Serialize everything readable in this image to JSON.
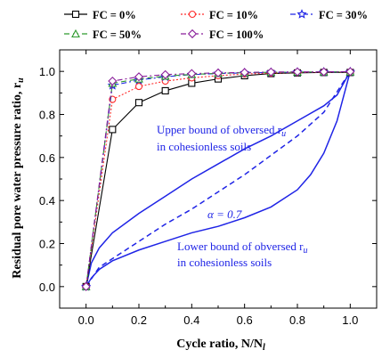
{
  "chart_data": {
    "type": "line",
    "xlabel": "Cycle ratio, N/N",
    "xlabel_sub": "l",
    "ylabel": "Residual pore water pressure ratio, r",
    "ylabel_sub": "u",
    "xlim": [
      -0.1,
      1.1
    ],
    "ylim": [
      -0.1,
      1.1
    ],
    "xticks": [
      "0.0",
      "0.2",
      "0.4",
      "0.6",
      "0.8",
      "1.0"
    ],
    "yticks": [
      "0.0",
      "0.2",
      "0.4",
      "0.6",
      "0.8",
      "1.0"
    ],
    "grid": false,
    "legend_position": "top",
    "series": [
      {
        "name": "FC = 0%",
        "color": "#000000",
        "marker": "square",
        "line": "solid",
        "x": [
          0.0,
          0.1,
          0.2,
          0.3,
          0.4,
          0.5,
          0.6,
          0.7,
          0.8,
          0.9,
          1.0
        ],
        "y": [
          0.0,
          0.73,
          0.855,
          0.91,
          0.945,
          0.965,
          0.98,
          0.99,
          0.993,
          0.995,
          0.995
        ]
      },
      {
        "name": "FC = 10%",
        "color": "#ff2a2a",
        "marker": "circle",
        "line": "dotted",
        "x": [
          0.0,
          0.1,
          0.2,
          0.3,
          0.4,
          0.5,
          0.6,
          0.7,
          0.8,
          0.9,
          1.0
        ],
        "y": [
          0.0,
          0.87,
          0.93,
          0.955,
          0.97,
          0.98,
          0.988,
          0.992,
          0.995,
          0.996,
          0.997
        ]
      },
      {
        "name": "FC = 30%",
        "color": "#1f24e6",
        "marker": "star",
        "line": "dashdot",
        "x": [
          0.0,
          0.1,
          0.2,
          0.3,
          0.4,
          0.5,
          0.6,
          0.7,
          0.8,
          0.9,
          1.0
        ],
        "y": [
          0.0,
          0.935,
          0.96,
          0.975,
          0.985,
          0.99,
          0.993,
          0.995,
          0.996,
          0.997,
          0.998
        ]
      },
      {
        "name": "FC = 50%",
        "color": "#2e9a2e",
        "marker": "triangle",
        "line": "dashed",
        "x": [
          0.0,
          0.1,
          0.2,
          0.3,
          0.4,
          0.5,
          0.6,
          0.7,
          0.8,
          0.9,
          1.0
        ],
        "y": [
          0.0,
          0.945,
          0.965,
          0.978,
          0.986,
          0.991,
          0.994,
          0.996,
          0.997,
          0.998,
          0.998
        ]
      },
      {
        "name": "FC = 100%",
        "color": "#8a1f9a",
        "marker": "diamond",
        "line": "dashdot",
        "x": [
          0.0,
          0.1,
          0.2,
          0.3,
          0.4,
          0.5,
          0.6,
          0.7,
          0.8,
          0.9,
          1.0
        ],
        "y": [
          0.0,
          0.955,
          0.975,
          0.985,
          0.99,
          0.993,
          0.995,
          0.997,
          0.998,
          0.998,
          0.999
        ]
      }
    ],
    "reference_curves": [
      {
        "id": "upper",
        "color": "#1f24e6",
        "line": "solid",
        "x": [
          0.0,
          0.02,
          0.05,
          0.1,
          0.2,
          0.3,
          0.4,
          0.5,
          0.6,
          0.7,
          0.8,
          0.9,
          0.95,
          1.0
        ],
        "y": [
          0.0,
          0.11,
          0.18,
          0.25,
          0.34,
          0.42,
          0.5,
          0.57,
          0.64,
          0.7,
          0.77,
          0.84,
          0.89,
          1.0
        ]
      },
      {
        "id": "alpha",
        "color": "#1f24e6",
        "line": "dashed",
        "x": [
          0.0,
          0.05,
          0.1,
          0.2,
          0.3,
          0.4,
          0.5,
          0.6,
          0.7,
          0.8,
          0.9,
          1.0
        ],
        "y": [
          0.0,
          0.09,
          0.13,
          0.21,
          0.29,
          0.36,
          0.44,
          0.52,
          0.61,
          0.7,
          0.81,
          1.0
        ]
      },
      {
        "id": "lower",
        "color": "#1f24e6",
        "line": "solid",
        "x": [
          0.0,
          0.02,
          0.05,
          0.1,
          0.2,
          0.3,
          0.4,
          0.5,
          0.6,
          0.7,
          0.8,
          0.85,
          0.9,
          0.95,
          1.0
        ],
        "y": [
          0.0,
          0.04,
          0.08,
          0.12,
          0.17,
          0.21,
          0.25,
          0.28,
          0.32,
          0.37,
          0.45,
          0.52,
          0.62,
          0.77,
          1.0
        ]
      }
    ],
    "annotations": {
      "upper_line1": "Upper bound of obversed r",
      "upper_line1_sub": "u",
      "upper_line2": "in cohesionless soils",
      "alpha": "α = 0.7",
      "lower_line1": "Lower bound of obversed r",
      "lower_line1_sub": "u",
      "lower_line2": "in cohesionless soils"
    }
  }
}
